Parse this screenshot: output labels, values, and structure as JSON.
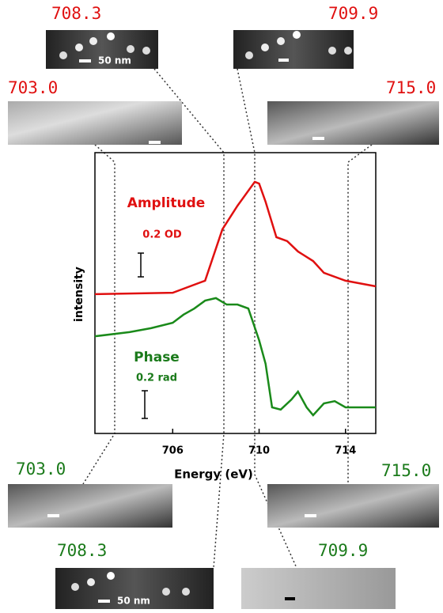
{
  "chart_data": {
    "type": "line",
    "xlabel": "Energy (eV)",
    "ylabel": "intensity",
    "xlim": [
      702.4,
      715.4
    ],
    "ylim": [
      0,
      1
    ],
    "xticks": [
      706,
      710,
      714
    ],
    "annotations": [
      "0.2 OD",
      "0.2 rad"
    ],
    "series": [
      {
        "name": "Amplitude",
        "color": "#e01010",
        "x": [
          702.4,
          706,
          707.5,
          708.3,
          709,
          709.8,
          710,
          710.3,
          710.8,
          711.3,
          711.8,
          712.5,
          713,
          714,
          715.4
        ],
        "values": [
          0.496,
          0.501,
          0.544,
          0.727,
          0.811,
          0.896,
          0.89,
          0.825,
          0.699,
          0.685,
          0.648,
          0.614,
          0.572,
          0.544,
          0.524
        ]
      },
      {
        "name": "Phase",
        "color": "#1a8a1a",
        "x": [
          702.4,
          704,
          705,
          706,
          706.5,
          707,
          707.5,
          708,
          708.5,
          709,
          709.5,
          710,
          710.3,
          710.6,
          711,
          711.5,
          711.8,
          712.2,
          712.5,
          713,
          713.5,
          714,
          715.4
        ],
        "values": [
          0.346,
          0.361,
          0.375,
          0.394,
          0.423,
          0.445,
          0.473,
          0.482,
          0.459,
          0.459,
          0.445,
          0.332,
          0.248,
          0.093,
          0.085,
          0.121,
          0.149,
          0.093,
          0.065,
          0.107,
          0.115,
          0.093,
          0.093
        ]
      }
    ]
  },
  "images": [
    {
      "label": "708.3",
      "scale_bar": "50 nm"
    },
    {
      "label": "709.9"
    },
    {
      "label": "703.0"
    },
    {
      "label": "715.0"
    },
    {
      "label": "703.0"
    },
    {
      "label": "715.0"
    },
    {
      "label": "708.3",
      "scale_bar": "50 nm"
    },
    {
      "label": "709.9"
    }
  ]
}
